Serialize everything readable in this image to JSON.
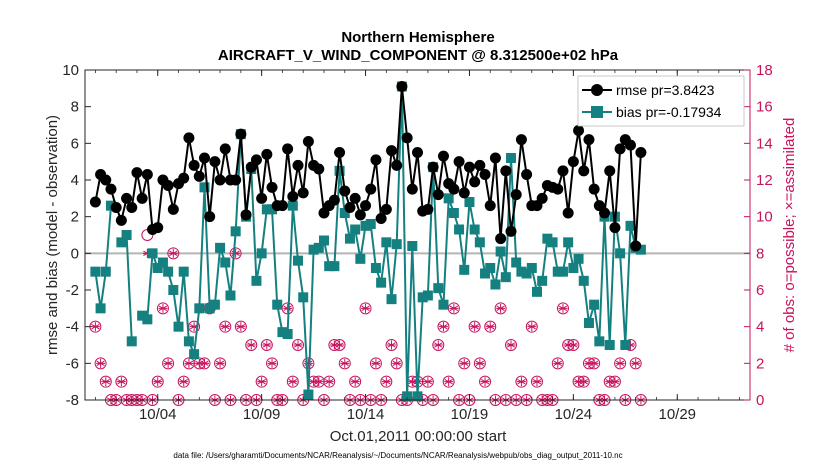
{
  "chart_data": {
    "type": "line",
    "title": "Northern Hemisphere",
    "subtitle": "AIRCRAFT_V_WIND_COMPONENT @ 8.312500e+02 hPa",
    "xlabel": "Oct.01,2011 00:00:00 start",
    "ylabel_left": "rmse and bias (model - observation)",
    "ylabel_right": "# of obs: o=possible; ×=assimilated",
    "footnote": "data file: /Users/gharamti/Documents/NCAR/Reanalysis/~/Documents/NCAR/Reanalysis/webpub/obs_diag_output_2011-10.nc",
    "x_ticks": [
      {
        "day": 4,
        "label": "10/04"
      },
      {
        "day": 9,
        "label": "10/09"
      },
      {
        "day": 14,
        "label": "10/14"
      },
      {
        "day": 19,
        "label": "10/19"
      },
      {
        "day": 24,
        "label": "10/24"
      },
      {
        "day": 29,
        "label": "10/29"
      }
    ],
    "xlim": [
      0.5,
      32.5
    ],
    "ylim_left": [
      -8,
      10
    ],
    "yticks_left": [
      "-8",
      "-6",
      "-4",
      "-2",
      "0",
      "2",
      "4",
      "6",
      "8",
      "10"
    ],
    "ylim_right": [
      0,
      18
    ],
    "yticks_right": [
      "0",
      "2",
      "4",
      "6",
      "8",
      "10",
      "12",
      "14",
      "16",
      "18"
    ],
    "legend": {
      "position": "top-right",
      "rmse_label": "rmse pr=3.8423",
      "bias_label": "bias pr=-0.17934"
    },
    "colors": {
      "rmse": "#000000",
      "bias": "#158080",
      "obs": "#c8135e",
      "zero_line": "#b4b4b4"
    },
    "x_step_days": 0.25,
    "x_start_day": 1.0,
    "series": [
      {
        "name": "rmse",
        "values": [
          2.8,
          4.3,
          4.0,
          3.5,
          2.5,
          1.8,
          3.0,
          2.5,
          4.4,
          3.0,
          4.3,
          1.3,
          1.4,
          4.0,
          3.7,
          2.4,
          3.8,
          4.1,
          6.3,
          4.8,
          4.2,
          5.2,
          2.0,
          5.0,
          4.0,
          5.7,
          4.0,
          4.0,
          6.5,
          2.1,
          4.7,
          5.1,
          3.0,
          5.4,
          3.6,
          2.6,
          2.6,
          5.7,
          3.1,
          4.8,
          3.3,
          6.1,
          4.8,
          4.6,
          2.2,
          2.6,
          2.9,
          5.5,
          3.4,
          2.5,
          3.0,
          2.1,
          2.6,
          3.5,
          5.1,
          1.9,
          2.4,
          5.6,
          4.8,
          9.1,
          6.3,
          3.5,
          5.5,
          2.3,
          2.4,
          4.7,
          3.2,
          5.3,
          3.8,
          3.5,
          5.0,
          3.3,
          4.7,
          3.9,
          4.8,
          4.3,
          2.6,
          5.2,
          0.8,
          4.5,
          1.2,
          3.2,
          6.2,
          4.3,
          2.6,
          2.6,
          3.0,
          3.7,
          3.6,
          3.5,
          4.5,
          2.2,
          5.0,
          6.7,
          4.5,
          6.2,
          3.5,
          2.6,
          2.2,
          4.5,
          1.4,
          5.7,
          6.2,
          5.9,
          0.4,
          5.5
        ]
      },
      {
        "name": "bias",
        "values": [
          -1.0,
          -3.0,
          -1.0,
          2.6,
          null,
          0.6,
          1.0,
          -4.8,
          null,
          -3.4,
          -3.6,
          0.0,
          -0.8,
          -0.5,
          -1.0,
          -2.0,
          -4.0,
          -1.0,
          -4.8,
          -5.5,
          -3.0,
          3.6,
          -3.0,
          -2.8,
          0.3,
          -0.5,
          -2.3,
          1.2,
          6.5,
          2.0,
          4.6,
          -1.5,
          0.0,
          2.4,
          2.4,
          -2.8,
          -4.3,
          -4.4,
          2.6,
          -0.4,
          -2.4,
          -7.7,
          0.2,
          0.3,
          0.7,
          -0.7,
          -0.7,
          4.5,
          2.2,
          0.8,
          1.3,
          -0.3,
          1.5,
          1.6,
          -0.8,
          -1.6,
          0.6,
          -2.5,
          0.5,
          9.1,
          -7.8,
          0.4,
          -7.8,
          -2.4,
          -2.3,
          4.7,
          -1.9,
          -2.8,
          3.0,
          2.2,
          1.3,
          -0.9,
          2.8,
          1.3,
          0.6,
          -1.1,
          -0.8,
          -1.7,
          0.1,
          -1.3,
          5.2,
          -0.5,
          -1.0,
          -1.1,
          -0.8,
          -2.1,
          -1.5,
          0.8,
          0.6,
          -1.0,
          -1.0,
          0.6,
          -0.8,
          -0.3,
          -1.5,
          -3.8,
          -2.8,
          -4.8,
          2.0,
          -5.0,
          2.0,
          0.0,
          -5.0,
          1.5,
          0.3,
          0.2
        ]
      },
      {
        "name": "obs_possible",
        "values": [
          4,
          2,
          1,
          0,
          0,
          1,
          0,
          0,
          0,
          0,
          9,
          0,
          1,
          5,
          2,
          8,
          0,
          1,
          2,
          4,
          2,
          2,
          5,
          0,
          2,
          4,
          0,
          8,
          4,
          0,
          3,
          0,
          1,
          3,
          2,
          0,
          0,
          5,
          1,
          3,
          0,
          2,
          1,
          1,
          0,
          1,
          3,
          3,
          2,
          0,
          1,
          0,
          5,
          0,
          2,
          0,
          1,
          3,
          2,
          0,
          0,
          1,
          1,
          0,
          1,
          0,
          3,
          4,
          1,
          5,
          0,
          2,
          0,
          4,
          2,
          1,
          4,
          0,
          5,
          0,
          3,
          0,
          1,
          0,
          4,
          1,
          0,
          0,
          0,
          2,
          5,
          3,
          3,
          1,
          1,
          2,
          2,
          0,
          0,
          1,
          1,
          2,
          0,
          3,
          2,
          0
        ]
      },
      {
        "name": "obs_assimilated",
        "values": [
          4,
          2,
          1,
          0,
          0,
          1,
          0,
          0,
          0,
          0,
          8,
          0,
          1,
          5,
          2,
          8,
          0,
          1,
          2,
          4,
          2,
          2,
          5,
          0,
          2,
          4,
          0,
          8,
          4,
          0,
          3,
          0,
          1,
          3,
          2,
          0,
          0,
          5,
          1,
          3,
          0,
          2,
          1,
          1,
          0,
          1,
          3,
          3,
          2,
          0,
          1,
          0,
          5,
          0,
          2,
          0,
          1,
          3,
          2,
          0,
          0,
          1,
          1,
          0,
          1,
          0,
          3,
          4,
          1,
          5,
          0,
          2,
          0,
          4,
          2,
          1,
          4,
          0,
          5,
          0,
          3,
          0,
          1,
          0,
          4,
          1,
          0,
          0,
          0,
          2,
          5,
          3,
          3,
          1,
          1,
          2,
          2,
          0,
          0,
          1,
          1,
          2,
          0,
          3,
          2,
          0
        ]
      }
    ]
  }
}
